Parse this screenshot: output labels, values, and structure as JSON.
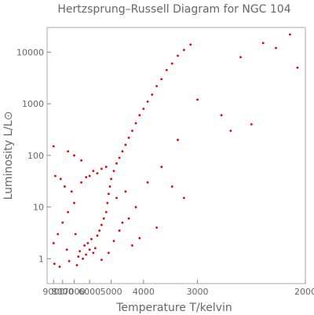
{
  "chart_data": {
    "type": "scatter",
    "title": "Hertzsprung–Russell Diagram for NGC 104",
    "xlabel": "Temperature  T/kelvin",
    "ylabel": "Luminosity  L/L⊙",
    "x_scale": "reciprocal",
    "y_scale": "log",
    "x_reversed": true,
    "xlim": [
      2000,
      9900
    ],
    "ylim": [
      0.33,
      30000
    ],
    "x_ticks": [
      9000,
      8000,
      7000,
      6000,
      5000,
      4000,
      3000,
      2000
    ],
    "x_tick_labels": [
      "9000",
      "8000",
      "7000",
      "6000",
      "5000",
      "4000",
      "3000",
      "2000"
    ],
    "y_ticks": [
      1,
      10,
      100,
      1000,
      10000
    ],
    "y_tick_labels": [
      "1",
      "10",
      "100",
      "1000",
      "10000"
    ],
    "grid": false,
    "marker_color": "#e60000",
    "series": [
      {
        "points": [
          [
            6200,
            1.2
          ],
          [
            6000,
            1.5
          ],
          [
            5800,
            1.3
          ],
          [
            6100,
            2.0
          ],
          [
            6400,
            1.0
          ],
          [
            6600,
            1.4
          ],
          [
            5900,
            2.4
          ],
          [
            6300,
            1.8
          ],
          [
            6700,
            1.1
          ],
          [
            5700,
            1.6
          ],
          [
            5600,
            2.8
          ],
          [
            5500,
            3.5
          ],
          [
            5400,
            4.5
          ],
          [
            5300,
            6
          ],
          [
            5200,
            8
          ],
          [
            5150,
            12
          ],
          [
            5100,
            18
          ],
          [
            5050,
            25
          ],
          [
            5000,
            35
          ],
          [
            4900,
            50
          ],
          [
            4800,
            70
          ],
          [
            4700,
            90
          ],
          [
            4600,
            120
          ],
          [
            4500,
            160
          ],
          [
            4400,
            220
          ],
          [
            4300,
            300
          ],
          [
            4200,
            420
          ],
          [
            4100,
            600
          ],
          [
            4000,
            800
          ],
          [
            3900,
            1100
          ],
          [
            3800,
            1500
          ],
          [
            3700,
            2200
          ],
          [
            3600,
            3000
          ],
          [
            3500,
            4500
          ],
          [
            3400,
            6000
          ],
          [
            3300,
            8500
          ],
          [
            3200,
            11000
          ],
          [
            3100,
            14000
          ],
          [
            5600,
            45
          ],
          [
            5800,
            50
          ],
          [
            6000,
            40
          ],
          [
            6200,
            38
          ],
          [
            5400,
            55
          ],
          [
            5200,
            60
          ],
          [
            6500,
            30
          ],
          [
            7000,
            12
          ],
          [
            7500,
            8
          ],
          [
            8000,
            5
          ],
          [
            8500,
            3
          ],
          [
            9000,
            2
          ],
          [
            2100,
            22000
          ],
          [
            2300,
            15000
          ],
          [
            2500,
            8000
          ],
          [
            2200,
            12000
          ],
          [
            2050,
            5000
          ],
          [
            2600,
            300
          ],
          [
            2700,
            600
          ],
          [
            3000,
            1200
          ],
          [
            2400,
            400
          ],
          [
            3300,
            200
          ],
          [
            4800,
            15
          ],
          [
            4500,
            20
          ],
          [
            4200,
            10
          ],
          [
            3900,
            30
          ],
          [
            3600,
            60
          ],
          [
            4600,
            5
          ],
          [
            4100,
            2.5
          ],
          [
            3700,
            4
          ],
          [
            3400,
            25
          ],
          [
            3200,
            15
          ],
          [
            8800,
            40
          ],
          [
            8200,
            35
          ],
          [
            7800,
            25
          ],
          [
            7200,
            20
          ],
          [
            9000,
            150
          ],
          [
            7500,
            120
          ],
          [
            7000,
            100
          ],
          [
            6500,
            80
          ],
          [
            6900,
            3
          ],
          [
            7600,
            1.5
          ],
          [
            8900,
            0.8
          ],
          [
            8300,
            0.7
          ],
          [
            7400,
            0.9
          ],
          [
            6800,
            0.75
          ],
          [
            5400,
            0.95
          ],
          [
            5100,
            1.3
          ],
          [
            4900,
            2.2
          ],
          [
            4700,
            3.5
          ],
          [
            4400,
            6
          ],
          [
            4300,
            1.8
          ]
        ]
      }
    ]
  }
}
